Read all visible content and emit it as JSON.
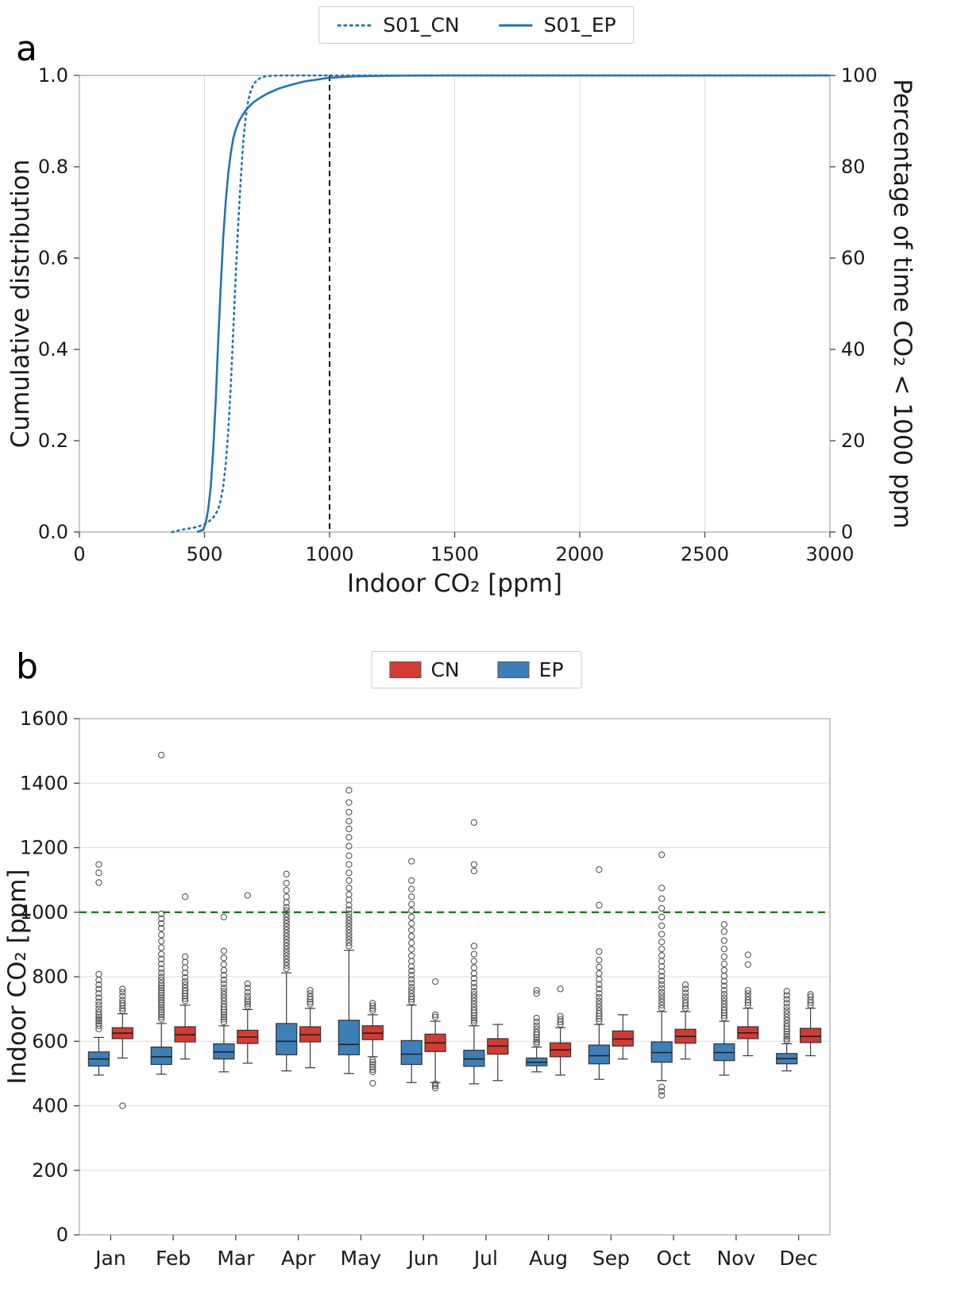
{
  "figure": {
    "panel_a": {
      "label": "a",
      "legend": [
        {
          "name": "S01_CN",
          "style": "dotted",
          "color": "#2273b5"
        },
        {
          "name": "S01_EP",
          "style": "solid",
          "color": "#2273b5"
        }
      ]
    },
    "panel_b": {
      "label": "b",
      "legend": [
        {
          "name": "CN",
          "color": "#d33b33"
        },
        {
          "name": "EP",
          "color": "#3d7fb8"
        }
      ]
    }
  },
  "chart_data": [
    {
      "type": "line",
      "title": "",
      "xlabel": "Indoor CO₂ [ppm]",
      "ylabel_left": "Cumulative distribution",
      "ylabel_right": "Percentage of time CO₂ < 1000 ppm",
      "xlim": [
        0,
        3000
      ],
      "ylim": [
        0,
        1
      ],
      "ylim_right": [
        0,
        100
      ],
      "xticks": [
        0,
        500,
        1000,
        1500,
        2000,
        2500,
        3000
      ],
      "xticklabels": [
        "0",
        "500",
        "1000",
        "1500",
        "2000",
        "2500",
        "3000"
      ],
      "yticks": [
        0,
        0.2,
        0.4,
        0.6,
        0.8,
        1.0
      ],
      "yticklabels": [
        "0.0",
        "0.2",
        "0.4",
        "0.6",
        "0.8",
        "1.0"
      ],
      "yticks_right": [
        0,
        20,
        40,
        60,
        80,
        100
      ],
      "grid": "vertical",
      "grid_color": "#dcdcdc",
      "border_color": "#b3b3b3",
      "vline": {
        "x": 1000,
        "color": "#000000",
        "style": "dashed"
      },
      "series": [
        {
          "name": "S01_CN",
          "style": "dotted",
          "color": "#2273b5",
          "points": [
            [
              370,
              0
            ],
            [
              385,
              0.002
            ],
            [
              400,
              0.004
            ],
            [
              420,
              0.006
            ],
            [
              440,
              0.008
            ],
            [
              460,
              0.01
            ],
            [
              480,
              0.013
            ],
            [
              500,
              0.017
            ],
            [
              520,
              0.024
            ],
            [
              540,
              0.035
            ],
            [
              555,
              0.05
            ],
            [
              565,
              0.07
            ],
            [
              575,
              0.1
            ],
            [
              585,
              0.15
            ],
            [
              595,
              0.22
            ],
            [
              605,
              0.32
            ],
            [
              615,
              0.44
            ],
            [
              625,
              0.565
            ],
            [
              635,
              0.675
            ],
            [
              645,
              0.775
            ],
            [
              655,
              0.855
            ],
            [
              665,
              0.91
            ],
            [
              675,
              0.945
            ],
            [
              685,
              0.966
            ],
            [
              695,
              0.98
            ],
            [
              710,
              0.99
            ],
            [
              725,
              0.995
            ],
            [
              745,
              0.998
            ],
            [
              775,
              0.9995
            ],
            [
              820,
              1.0
            ],
            [
              3000,
              1.0
            ]
          ]
        },
        {
          "name": "S01_EP",
          "style": "solid",
          "color": "#2273b5",
          "points": [
            [
              470,
              0
            ],
            [
              495,
              0.005
            ],
            [
              505,
              0.02
            ],
            [
              515,
              0.05
            ],
            [
              525,
              0.1
            ],
            [
              535,
              0.18
            ],
            [
              545,
              0.29
            ],
            [
              555,
              0.42
            ],
            [
              565,
              0.54
            ],
            [
              575,
              0.645
            ],
            [
              585,
              0.725
            ],
            [
              595,
              0.785
            ],
            [
              605,
              0.83
            ],
            [
              615,
              0.862
            ],
            [
              625,
              0.882
            ],
            [
              640,
              0.902
            ],
            [
              660,
              0.92
            ],
            [
              680,
              0.933
            ],
            [
              700,
              0.943
            ],
            [
              725,
              0.952
            ],
            [
              750,
              0.96
            ],
            [
              800,
              0.972
            ],
            [
              850,
              0.98
            ],
            [
              900,
              0.987
            ],
            [
              950,
              0.991
            ],
            [
              1000,
              0.995
            ],
            [
              1100,
              0.998
            ],
            [
              1250,
              0.9995
            ],
            [
              1500,
              1.0
            ],
            [
              3000,
              1.0
            ]
          ]
        }
      ]
    },
    {
      "type": "boxplot",
      "title": "",
      "xlabel": "",
      "ylabel": "Indoor CO₂ [ppm]",
      "ylim": [
        0,
        1600
      ],
      "yticks": [
        0,
        200,
        400,
        600,
        800,
        1000,
        1200,
        1400,
        1600
      ],
      "categories": [
        "Jan",
        "Feb",
        "Mar",
        "Apr",
        "May",
        "Jun",
        "Jul",
        "Aug",
        "Sep",
        "Oct",
        "Nov",
        "Dec"
      ],
      "grid": "horizontal",
      "grid_color": "#dcdcdc",
      "border_color": "#b3b3b3",
      "hline": {
        "y": 1000,
        "color": "#148014",
        "style": "dashed"
      },
      "box_schema": [
        "whisker_low",
        "q1",
        "median",
        "q3",
        "whisker_high",
        "outliers"
      ],
      "series": [
        {
          "name": "EP",
          "color": "#3d7fb8",
          "offset": -0.19,
          "boxes": [
            [
              495,
              523,
              545,
              567,
              612,
              [
                638,
                648,
                655,
                662,
                668,
                675,
                682,
                690,
                700,
                712,
                722,
                735,
                748,
                762,
                775,
                790,
                808,
                1092,
                1122,
                1148
              ]
            ],
            [
              498,
              528,
              552,
              582,
              655,
              [
                668,
                675,
                682,
                690,
                698,
                705,
                712,
                720,
                728,
                735,
                742,
                750,
                758,
                765,
                772,
                780,
                790,
                800,
                812,
                825,
                840,
                855,
                870,
                890,
                910,
                930,
                950,
                965,
                980,
                995,
                1487
              ]
            ],
            [
              505,
              545,
              567,
              592,
              648,
              [
                660,
                668,
                675,
                682,
                690,
                698,
                706,
                715,
                725,
                735,
                745,
                755,
                765,
                778,
                790,
                805,
                820,
                838,
                858,
                880,
                985
              ]
            ],
            [
              508,
              558,
              600,
              655,
              812,
              [
                825,
                835,
                845,
                855,
                865,
                875,
                885,
                895,
                905,
                915,
                925,
                935,
                945,
                955,
                965,
                975,
                985,
                995,
                1005,
                1015,
                1030,
                1048,
                1068,
                1090,
                1118
              ]
            ],
            [
              500,
              558,
              590,
              665,
              882,
              [
                895,
                905,
                915,
                925,
                935,
                945,
                955,
                965,
                975,
                985,
                995,
                1008,
                1022,
                1038,
                1055,
                1075,
                1098,
                1122,
                1148,
                1175,
                1205,
                1232,
                1258,
                1282,
                1310,
                1340,
                1378
              ]
            ],
            [
              472,
              528,
              560,
              602,
              712,
              [
                722,
                730,
                738,
                748,
                758,
                768,
                780,
                792,
                805,
                818,
                832,
                848,
                865,
                885,
                905,
                925,
                945,
                965,
                985,
                1005,
                1025,
                1048,
                1072,
                1098,
                1158
              ]
            ],
            [
              468,
              522,
              545,
              572,
              648,
              [
                658,
                665,
                672,
                680,
                688,
                696,
                705,
                715,
                725,
                735,
                745,
                755,
                768,
                780,
                795,
                810,
                828,
                848,
                870,
                895,
                1128,
                1148,
                1278
              ]
            ],
            [
              505,
              524,
              535,
              548,
              582,
              [
                592,
                598,
                605,
                612,
                620,
                628,
                638,
                648,
                660,
                672,
                748,
                758
              ]
            ],
            [
              482,
              530,
              555,
              588,
              652,
              [
                662,
                670,
                678,
                686,
                695,
                705,
                715,
                725,
                736,
                748,
                762,
                776,
                792,
                810,
                830,
                852,
                878,
                1022,
                1132
              ]
            ],
            [
              478,
              535,
              565,
              598,
              692,
              [
                432,
                445,
                458,
                702,
                712,
                722,
                732,
                742,
                752,
                764,
                776,
                788,
                802,
                816,
                832,
                848,
                866,
                886,
                908,
                932,
                958,
                985,
                1012,
                1042,
                1075,
                1178
              ]
            ],
            [
              495,
              540,
              565,
              592,
              662,
              [
                672,
                680,
                688,
                696,
                705,
                715,
                725,
                735,
                746,
                758,
                772,
                786,
                802,
                820,
                840,
                862,
                886,
                912,
                940,
                962
              ]
            ],
            [
              508,
              530,
              546,
              562,
              592,
              [
                602,
                608,
                615,
                622,
                630,
                638,
                646,
                655,
                665,
                675,
                685,
                695,
                706,
                718,
                730,
                742,
                755
              ]
            ]
          ]
        },
        {
          "name": "CN",
          "color": "#d33b33",
          "offset": 0.19,
          "boxes": [
            [
              548,
              608,
              625,
              642,
              685,
              [
                400,
                695,
                702,
                710,
                718,
                728,
                740,
                752,
                762
              ]
            ],
            [
              545,
              598,
              620,
              645,
              712,
              [
                725,
                732,
                740,
                748,
                756,
                765,
                775,
                785,
                798,
                812,
                828,
                845,
                862,
                1048
              ]
            ],
            [
              532,
              593,
              613,
              634,
              698,
              [
                708,
                715,
                722,
                730,
                740,
                752,
                765,
                778,
                1052
              ]
            ],
            [
              518,
              598,
              620,
              645,
              702,
              [
                715,
                722,
                730,
                738,
                748,
                758
              ]
            ],
            [
              552,
              605,
              625,
              648,
              682,
              [
                470,
                505,
                512,
                520,
                528,
                535,
                542,
                695,
                702,
                710,
                718
              ]
            ],
            [
              472,
              568,
              595,
              622,
              662,
              [
                455,
                462,
                468,
                675,
                682,
                785
              ]
            ],
            [
              478,
              560,
              585,
              608,
              652,
              []
            ],
            [
              495,
              552,
              573,
              595,
              642,
              [
                652,
                660,
                668,
                678,
                762
              ]
            ],
            [
              545,
              585,
              607,
              632,
              682,
              []
            ],
            [
              545,
              594,
              615,
              637,
              692,
              [
                702,
                710,
                718,
                728,
                738,
                750,
                762,
                775
              ]
            ],
            [
              555,
              608,
              626,
              645,
              702,
              [
                712,
                720,
                728,
                738,
                748,
                758,
                838,
                868
              ]
            ],
            [
              555,
              596,
              615,
              640,
              702,
              [
                712,
                720,
                728,
                738,
                745
              ]
            ]
          ]
        }
      ]
    }
  ]
}
